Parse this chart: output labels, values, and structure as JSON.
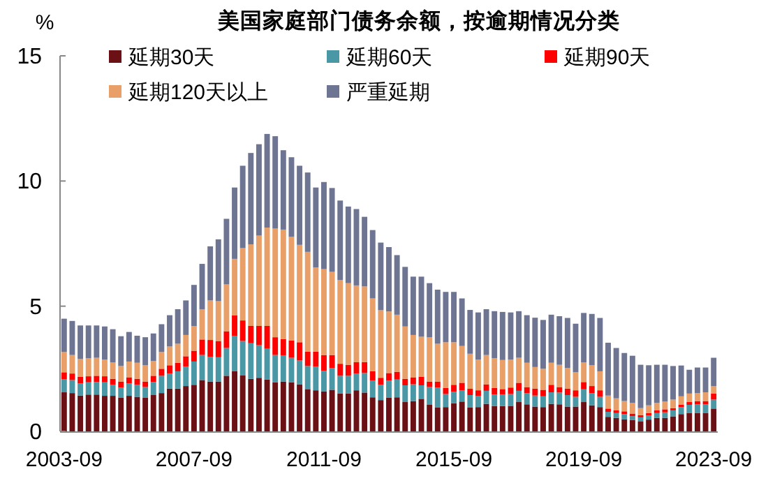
{
  "chart_data": {
    "type": "bar",
    "stacked": true,
    "title": "美国家庭部门债务余额，按逾期情况分类",
    "ylabel": "%",
    "legend": "top",
    "ylim": [
      0,
      15
    ],
    "yticks": [
      0,
      5,
      10,
      15
    ],
    "categories": [
      "2003-09",
      null,
      null,
      null,
      null,
      null,
      null,
      null,
      null,
      null,
      null,
      null,
      null,
      null,
      null,
      null,
      "2007-09",
      null,
      null,
      null,
      null,
      null,
      null,
      null,
      null,
      null,
      null,
      null,
      null,
      null,
      null,
      null,
      "2011-09",
      null,
      null,
      null,
      null,
      null,
      null,
      null,
      null,
      null,
      null,
      null,
      null,
      null,
      null,
      null,
      "2015-09",
      null,
      null,
      null,
      null,
      null,
      null,
      null,
      null,
      null,
      null,
      null,
      null,
      null,
      null,
      null,
      "2019-09",
      null,
      null,
      null,
      null,
      null,
      null,
      null,
      null,
      null,
      null,
      null,
      null,
      null,
      null,
      null,
      "2023-09"
    ],
    "series": [
      {
        "name": "延期30天",
        "color": "#6b1014",
        "values": [
          1.56,
          1.53,
          1.43,
          1.47,
          1.47,
          1.42,
          1.42,
          1.34,
          1.42,
          1.38,
          1.34,
          1.45,
          1.53,
          1.71,
          1.71,
          1.81,
          1.86,
          2.05,
          1.99,
          1.99,
          2.22,
          2.4,
          2.23,
          2.1,
          2.14,
          2.07,
          1.96,
          1.99,
          1.96,
          1.88,
          1.69,
          1.64,
          1.6,
          1.66,
          1.51,
          1.51,
          1.64,
          1.55,
          1.36,
          1.25,
          1.34,
          1.36,
          1.17,
          1.21,
          1.3,
          1.06,
          0.95,
          0.97,
          1.12,
          1.19,
          0.95,
          0.97,
          1.1,
          1.01,
          1.01,
          1.02,
          1.17,
          1.08,
          0.99,
          0.97,
          1.1,
          1.08,
          0.99,
          0.99,
          1.17,
          1.04,
          0.97,
          0.58,
          0.54,
          0.48,
          0.45,
          0.39,
          0.47,
          0.54,
          0.54,
          0.6,
          0.69,
          0.74,
          0.74,
          0.74,
          0.91
        ]
      },
      {
        "name": "延期60天",
        "color": "#4a97a6",
        "values": [
          0.53,
          0.52,
          0.49,
          0.49,
          0.5,
          0.54,
          0.44,
          0.41,
          0.5,
          0.48,
          0.43,
          0.52,
          0.69,
          0.6,
          0.69,
          0.78,
          0.93,
          1.0,
          0.99,
          0.97,
          1.11,
          1.42,
          1.38,
          1.42,
          1.3,
          1.23,
          1.09,
          1.05,
          0.98,
          0.95,
          0.92,
          0.95,
          0.82,
          0.87,
          0.71,
          0.71,
          0.67,
          0.78,
          0.67,
          0.61,
          0.69,
          0.71,
          0.67,
          0.67,
          0.54,
          0.71,
          0.8,
          0.52,
          0.46,
          0.45,
          0.5,
          0.45,
          0.52,
          0.46,
          0.46,
          0.47,
          0.45,
          0.45,
          0.44,
          0.43,
          0.46,
          0.47,
          0.46,
          0.39,
          0.51,
          0.49,
          0.41,
          0.2,
          0.19,
          0.21,
          0.16,
          0.17,
          0.16,
          0.19,
          0.22,
          0.24,
          0.28,
          0.32,
          0.34,
          0.34,
          0.36
        ]
      },
      {
        "name": "延期90天",
        "color": "#ff0000",
        "values": [
          0.27,
          0.26,
          0.26,
          0.24,
          0.25,
          0.24,
          0.24,
          0.24,
          0.24,
          0.24,
          0.22,
          0.25,
          0.28,
          0.33,
          0.34,
          0.41,
          0.43,
          0.62,
          0.67,
          0.65,
          0.67,
          0.82,
          0.82,
          0.69,
          0.77,
          0.91,
          0.71,
          0.65,
          0.69,
          0.73,
          0.57,
          0.59,
          0.63,
          0.52,
          0.48,
          0.44,
          0.45,
          0.44,
          0.37,
          0.28,
          0.3,
          0.31,
          0.26,
          0.28,
          0.34,
          0.22,
          0.24,
          0.24,
          0.28,
          0.3,
          0.25,
          0.22,
          0.26,
          0.26,
          0.22,
          0.26,
          0.32,
          0.24,
          0.28,
          0.26,
          0.3,
          0.22,
          0.26,
          0.26,
          0.29,
          0.28,
          0.26,
          0.13,
          0.11,
          0.11,
          0.1,
          0.09,
          0.1,
          0.11,
          0.12,
          0.09,
          0.09,
          0.11,
          0.13,
          0.13,
          0.24
        ]
      },
      {
        "name": "延期120天以上",
        "color": "#e8a068",
        "values": [
          0.81,
          0.74,
          0.71,
          0.72,
          0.72,
          0.67,
          0.66,
          0.62,
          0.63,
          0.64,
          0.65,
          0.59,
          0.67,
          0.75,
          0.76,
          0.85,
          0.99,
          1.21,
          1.58,
          1.59,
          1.87,
          2.25,
          2.89,
          3.26,
          3.61,
          3.93,
          4.34,
          4.37,
          4.14,
          3.89,
          3.99,
          3.37,
          3.43,
          3.32,
          3.35,
          3.26,
          3.07,
          3.02,
          2.91,
          2.7,
          2.46,
          2.28,
          2.09,
          1.69,
          1.6,
          1.77,
          1.51,
          1.83,
          1.7,
          1.47,
          1.4,
          1.23,
          1.17,
          1.19,
          1.16,
          1.12,
          1.0,
          0.97,
          0.86,
          0.84,
          0.88,
          0.89,
          0.82,
          0.72,
          0.79,
          0.83,
          0.76,
          0.52,
          0.48,
          0.41,
          0.43,
          0.28,
          0.31,
          0.3,
          0.31,
          0.34,
          0.34,
          0.34,
          0.32,
          0.35,
          0.3
        ]
      },
      {
        "name": "严重延期",
        "color": "#6e7592",
        "values": [
          1.33,
          1.36,
          1.34,
          1.31,
          1.29,
          1.32,
          1.32,
          1.19,
          1.18,
          1.08,
          1.12,
          1.1,
          1.11,
          1.25,
          1.38,
          1.38,
          1.64,
          1.81,
          2.16,
          2.47,
          2.62,
          2.85,
          3.29,
          3.65,
          3.65,
          3.74,
          3.69,
          3.17,
          3.18,
          3.16,
          3.17,
          3.19,
          3.48,
          3.35,
          3.17,
          3.06,
          3.05,
          2.78,
          2.73,
          2.7,
          2.57,
          2.38,
          2.38,
          2.33,
          2.4,
          2.16,
          2.16,
          2.01,
          2.01,
          1.9,
          1.75,
          1.88,
          1.83,
          1.88,
          1.92,
          1.88,
          1.86,
          1.9,
          1.97,
          1.95,
          1.92,
          1.94,
          2.0,
          1.94,
          1.97,
          2.05,
          2.13,
          2.11,
          2.01,
          1.92,
          1.88,
          1.73,
          1.6,
          1.52,
          1.47,
          1.34,
          1.23,
          0.95,
          1.02,
          0.99,
          1.13
        ]
      }
    ]
  }
}
